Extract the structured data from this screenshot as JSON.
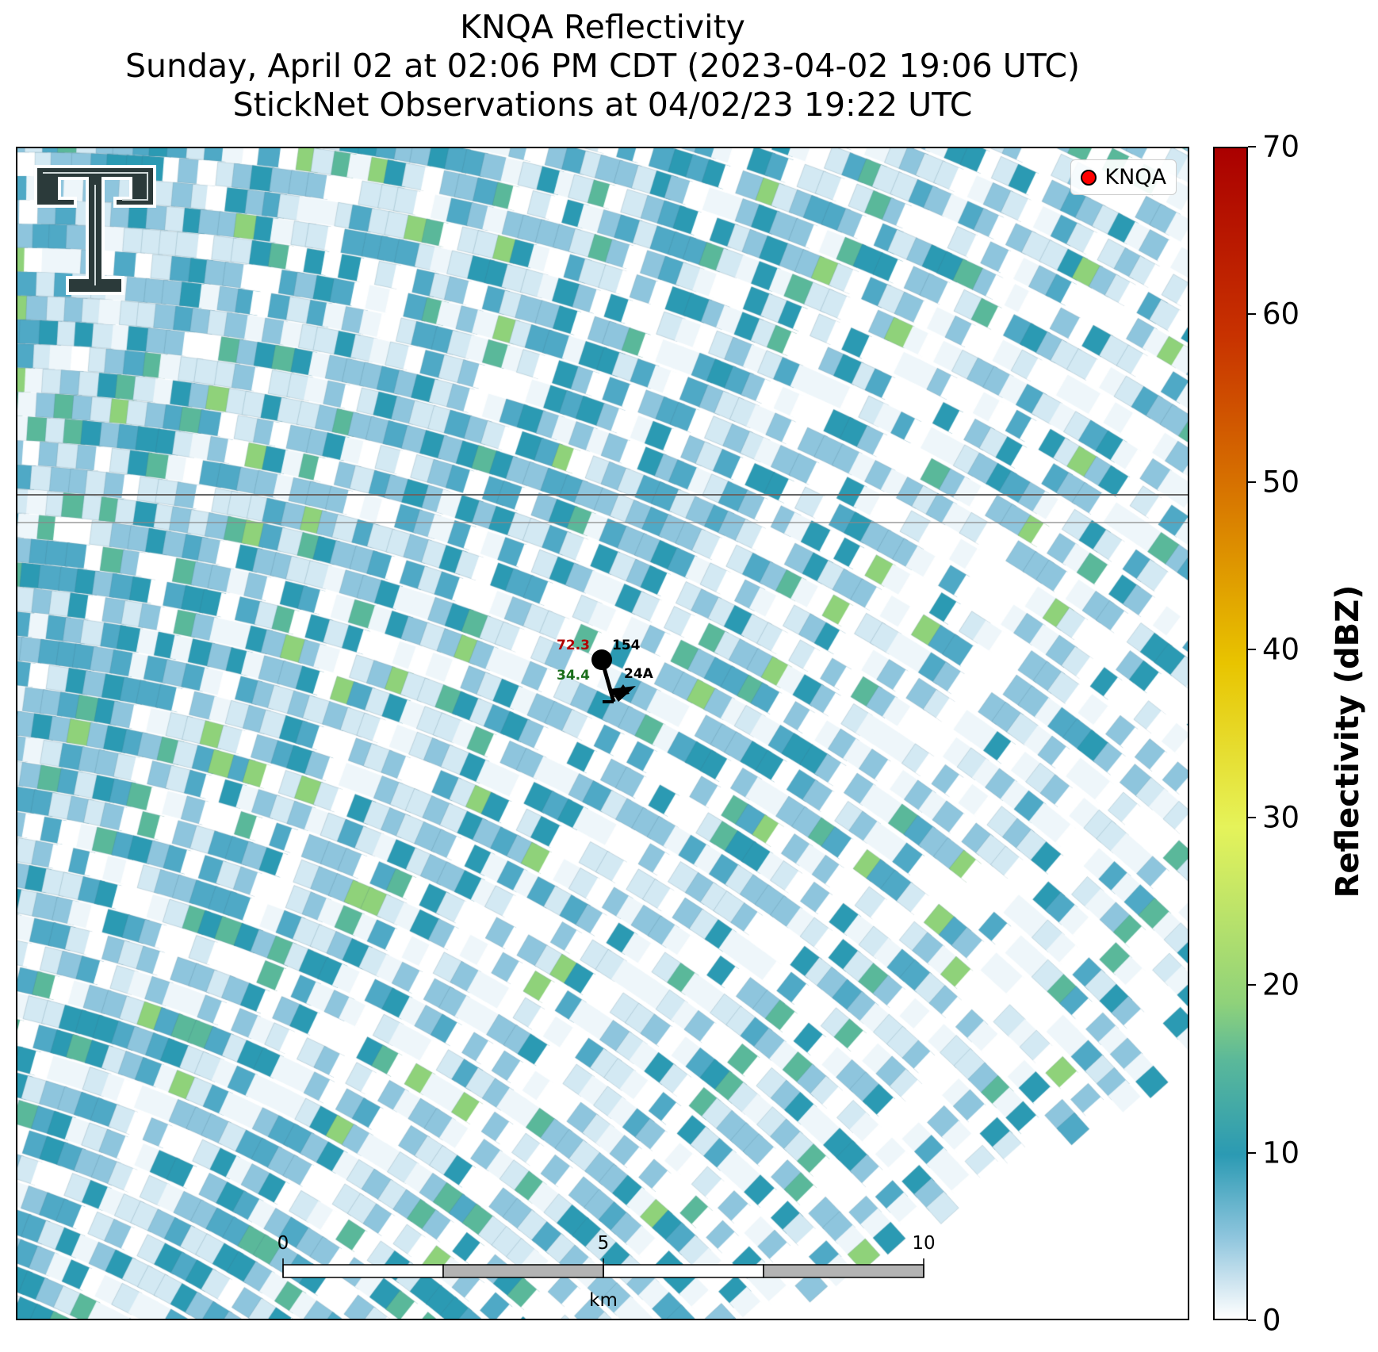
{
  "title": {
    "line1": "KNQA Reflectivity",
    "line2": "Sunday, April 02 at 02:06 PM CDT (2023-04-02 19:06 UTC)",
    "line3": "StickNet Observations at 04/02/23 19:22 UTC"
  },
  "legend": {
    "label": "KNQA",
    "marker_color": "#ff0000"
  },
  "station": {
    "temperature": "72.3",
    "pressure_code": "154",
    "dewpoint": "34.4",
    "id": "24A",
    "temperature_color": "#b00000",
    "dewpoint_color": "#1a6e1a"
  },
  "scale_bar": {
    "labels": [
      "0",
      "5",
      "10"
    ],
    "unit": "km"
  },
  "colorbar": {
    "label": "Reflectivity (dBZ)",
    "min": 0,
    "max": 70,
    "ticks": [
      "0",
      "10",
      "20",
      "30",
      "40",
      "50",
      "60",
      "70"
    ]
  },
  "logo": {
    "icon": "texas-tech-double-t-logo"
  },
  "colors": {
    "light": "#d3e9f3",
    "mid": "#8ec5dd",
    "teal": "#2b9ab3",
    "green": "#5ab89a",
    "lime": "#8fd27a"
  }
}
